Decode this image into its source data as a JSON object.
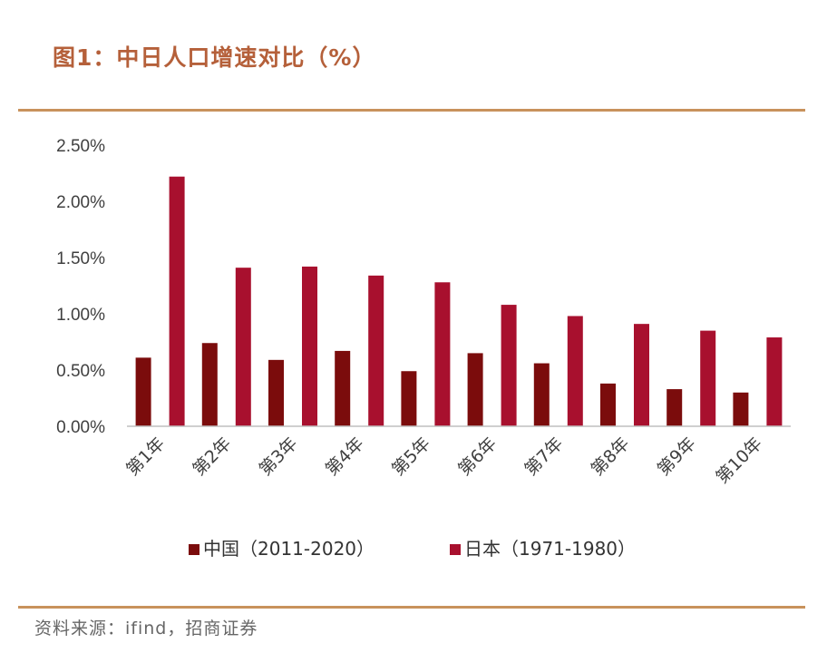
{
  "header": {
    "title": "图1：中日人口增速对比（%）"
  },
  "footer": {
    "source": "资料来源：ifind，招商证券"
  },
  "chart_data": {
    "type": "bar",
    "title": "图1：中日人口增速对比（%）",
    "categories": [
      "第1年",
      "第2年",
      "第3年",
      "第4年",
      "第5年",
      "第6年",
      "第7年",
      "第8年",
      "第9年",
      "第10年"
    ],
    "series": [
      {
        "name": "中国（2011-2020）",
        "color": "#7b0c0c",
        "values": [
          0.61,
          0.74,
          0.59,
          0.67,
          0.49,
          0.65,
          0.56,
          0.38,
          0.33,
          0.3
        ]
      },
      {
        "name": "日本（1971-1980）",
        "color": "#a8102e",
        "values": [
          2.22,
          1.41,
          1.42,
          1.34,
          1.28,
          1.08,
          0.98,
          0.91,
          0.85,
          0.79
        ]
      }
    ],
    "y_ticks": [
      "0.00%",
      "0.50%",
      "1.00%",
      "1.50%",
      "2.00%",
      "2.50%"
    ],
    "ylim": [
      0,
      2.5
    ],
    "xlabel": "",
    "ylabel": "",
    "grid": false,
    "legend_position": "bottom"
  }
}
